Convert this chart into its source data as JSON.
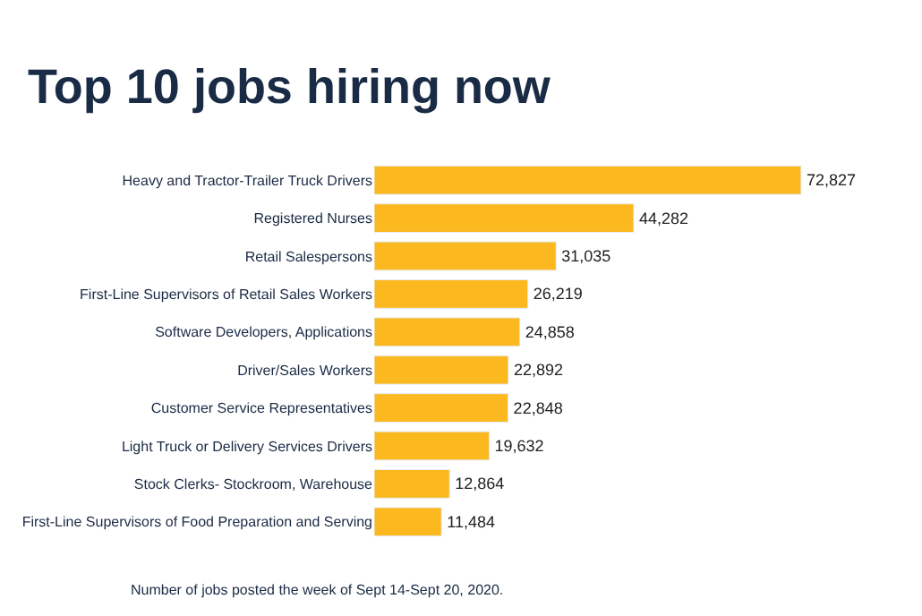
{
  "chart_data": {
    "type": "bar",
    "orientation": "horizontal",
    "title": "Top 10 jobs hiring now",
    "categories": [
      "Heavy and Tractor-Trailer Truck Drivers",
      "Registered Nurses",
      "Retail Salespersons",
      "First-Line Supervisors of Retail Sales Workers",
      "Software Developers, Applications",
      "Driver/Sales Workers",
      "Customer Service Representatives",
      "Light Truck or Delivery Services Drivers",
      "Stock Clerks- Stockroom, Warehouse",
      "First-Line Supervisors of Food Preparation and Serving"
    ],
    "values": [
      72827,
      44282,
      31035,
      26219,
      24858,
      22892,
      22848,
      19632,
      12864,
      11484
    ],
    "value_labels": [
      "72,827",
      "44,282",
      "31,035",
      "26,219",
      "24,858",
      "22,892",
      "22,848",
      "19,632",
      "12,864",
      "11,484"
    ],
    "color": "#fbb91f",
    "annotations": [
      "Number of jobs posted the week of Sept 14-Sept 20, 2020."
    ]
  }
}
